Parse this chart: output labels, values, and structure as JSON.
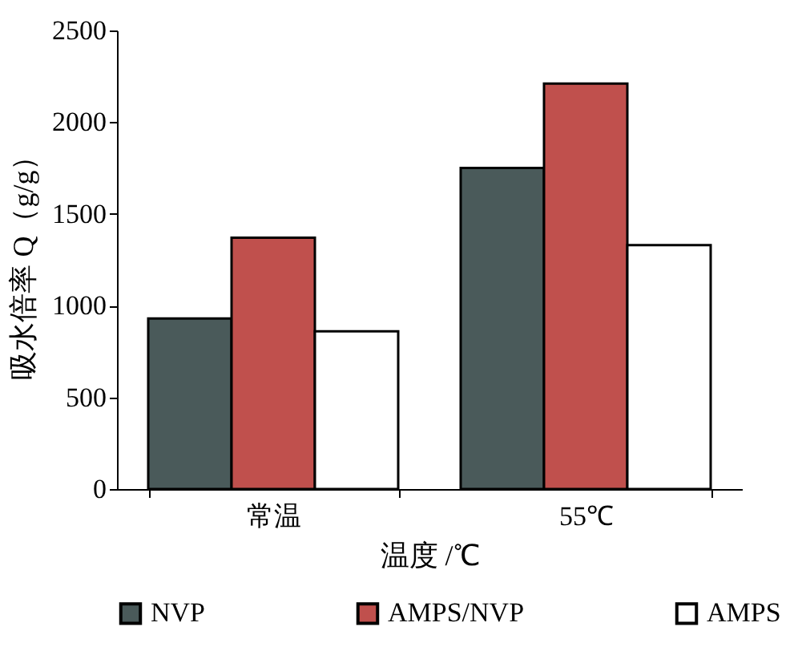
{
  "chart_data": {
    "type": "bar",
    "xlabel": "温度 /℃",
    "ylabel": "吸水倍率 Q（g/g）",
    "categories": [
      "常温",
      "55℃"
    ],
    "series": [
      {
        "name": "NVP",
        "color": "#4a5a5a",
        "values": [
          930,
          1750
        ]
      },
      {
        "name": "AMPS/NVP",
        "color": "#c0504d",
        "values": [
          1370,
          2210
        ]
      },
      {
        "name": "AMPS",
        "color": "#ffffff",
        "values": [
          860,
          1330
        ]
      }
    ],
    "ylim": [
      0,
      2500
    ],
    "yticks": [
      0,
      500,
      1000,
      1500,
      2000,
      2500
    ],
    "grid": false,
    "legend": "bottom"
  }
}
